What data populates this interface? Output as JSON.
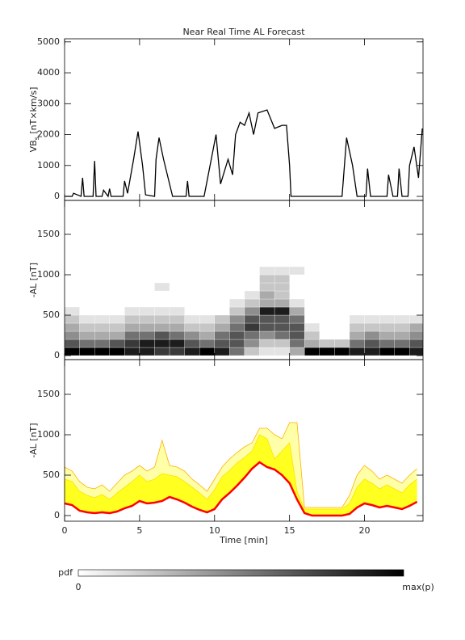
{
  "chart_data": [
    {
      "type": "line",
      "title": "Near Real Time AL Forecast",
      "ylabel": {
        "main": "VB",
        "sub": "s",
        "rest": " [nT×km/s]"
      },
      "xlim": [
        0,
        23.9
      ],
      "xticks": [
        0,
        5,
        10,
        15,
        20
      ],
      "ylim": [
        -130,
        5100
      ],
      "yticks": [
        0,
        1000,
        2000,
        3000,
        4000,
        5000
      ],
      "color": "#000000",
      "x": [
        0,
        0.5,
        0.6,
        1.1,
        1.2,
        1.3,
        1.9,
        2.0,
        2.1,
        2.5,
        2.6,
        2.9,
        3.0,
        3.1,
        3.9,
        4.0,
        4.2,
        4.6,
        4.9,
        5.2,
        5.4,
        6.0,
        6.1,
        6.3,
        6.6,
        6.9,
        7.2,
        8.1,
        8.2,
        8.3,
        9.3,
        9.9,
        10.1,
        10.4,
        10.9,
        11.2,
        11.4,
        11.7,
        12.0,
        12.3,
        12.6,
        12.9,
        13.5,
        14.0,
        14.5,
        14.8,
        15.0,
        15.1,
        18.5,
        18.8,
        19.2,
        19.5,
        20.1,
        20.2,
        20.4,
        21.5,
        21.6,
        21.9,
        22.2,
        22.3,
        22.5,
        22.9,
        23.0,
        23.3,
        23.6,
        23.85
      ],
      "values": [
        0,
        0,
        100,
        0,
        600,
        0,
        0,
        1150,
        0,
        0,
        200,
        0,
        250,
        0,
        0,
        500,
        100,
        1200,
        2100,
        1000,
        50,
        0,
        1200,
        1900,
        1200,
        600,
        0,
        0,
        500,
        0,
        0,
        1500,
        2000,
        400,
        1200,
        700,
        2000,
        2400,
        2300,
        2700,
        2000,
        2700,
        2800,
        2200,
        2300,
        2300,
        1000,
        0,
        0,
        1900,
        1000,
        0,
        0,
        900,
        0,
        0,
        700,
        0,
        0,
        900,
        0,
        0,
        1000,
        1600,
        600,
        2200
      ]
    },
    {
      "type": "heatmap",
      "ylabel": "-AL [nT]",
      "xlim": [
        0,
        23.9
      ],
      "xticks": [
        0,
        5,
        10,
        15,
        20
      ],
      "ylim": [
        -50,
        1920
      ],
      "yticks": [
        0,
        500,
        1000,
        1500
      ],
      "xbins": [
        0,
        1,
        2,
        3,
        4,
        5,
        6,
        7,
        8,
        9,
        10,
        11,
        12,
        13,
        14,
        15,
        16,
        17,
        18,
        19,
        20,
        21,
        22,
        23,
        24
      ],
      "ybins": [
        0,
        100,
        200,
        300,
        400,
        500,
        600,
        700,
        800,
        900,
        1000,
        1100
      ],
      "z": [
        [
          9,
          6,
          4,
          3,
          2,
          1,
          0,
          0,
          0,
          0,
          0
        ],
        [
          9,
          5,
          3,
          2,
          1,
          0,
          0,
          0,
          0,
          0,
          0
        ],
        [
          9,
          5,
          3,
          2,
          1,
          0,
          0,
          0,
          0,
          0,
          0
        ],
        [
          9,
          6,
          3,
          2,
          1,
          0,
          0,
          0,
          0,
          0,
          0
        ],
        [
          8,
          7,
          5,
          3,
          2,
          1,
          0,
          0,
          0,
          0,
          0
        ],
        [
          8,
          8,
          5,
          3,
          2,
          1,
          0,
          0,
          0,
          0,
          0
        ],
        [
          7,
          8,
          6,
          3,
          2,
          1,
          0,
          0,
          1,
          0,
          0
        ],
        [
          7,
          8,
          5,
          3,
          2,
          1,
          0,
          0,
          0,
          0,
          0
        ],
        [
          8,
          6,
          4,
          2,
          1,
          0,
          0,
          0,
          0,
          0,
          0
        ],
        [
          9,
          5,
          3,
          2,
          1,
          0,
          0,
          0,
          0,
          0,
          0
        ],
        [
          8,
          6,
          5,
          3,
          2,
          0,
          0,
          0,
          0,
          0,
          0
        ],
        [
          5,
          6,
          6,
          5,
          4,
          2,
          1,
          0,
          0,
          0,
          0
        ],
        [
          2,
          4,
          5,
          7,
          6,
          4,
          2,
          1,
          0,
          0,
          0
        ],
        [
          1,
          2,
          4,
          6,
          6,
          8,
          3,
          3,
          2,
          2,
          1
        ],
        [
          1,
          2,
          5,
          6,
          6,
          8,
          3,
          2,
          2,
          2,
          1
        ],
        [
          3,
          5,
          6,
          6,
          5,
          3,
          1,
          0,
          0,
          0,
          1
        ],
        [
          9,
          3,
          2,
          1,
          0,
          0,
          0,
          0,
          0,
          0,
          0
        ],
        [
          9,
          2,
          0,
          0,
          0,
          0,
          0,
          0,
          0,
          0,
          0
        ],
        [
          9,
          2,
          0,
          0,
          0,
          0,
          0,
          0,
          0,
          0,
          0
        ],
        [
          8,
          5,
          3,
          2,
          1,
          0,
          0,
          0,
          0,
          0,
          0
        ],
        [
          8,
          6,
          4,
          2,
          1,
          0,
          0,
          0,
          0,
          0,
          0
        ],
        [
          9,
          5,
          3,
          2,
          1,
          0,
          0,
          0,
          0,
          0,
          0
        ],
        [
          9,
          5,
          3,
          2,
          1,
          0,
          0,
          0,
          0,
          0,
          0
        ],
        [
          8,
          6,
          4,
          3,
          1,
          0,
          0,
          0,
          0,
          0,
          0
        ]
      ],
      "colorbar": {
        "title": "pdf",
        "low": "0",
        "high": "max(p)"
      }
    },
    {
      "type": "band",
      "ylabel": "-AL [nT]",
      "xlabel": "Time [min]",
      "xlim": [
        0,
        23.9
      ],
      "xticks": [
        0,
        5,
        10,
        15,
        20
      ],
      "ylim": [
        -70,
        1930
      ],
      "yticks": [
        0,
        500,
        1000,
        1500
      ],
      "x": [
        0,
        0.5,
        1,
        1.5,
        2,
        2.5,
        3,
        3.5,
        4,
        4.5,
        5,
        5.5,
        6,
        6.5,
        7,
        7.5,
        8,
        8.5,
        9,
        9.5,
        10,
        10.5,
        11,
        11.5,
        12,
        12.5,
        13,
        13.5,
        14,
        14.5,
        15,
        15.5,
        16,
        16.5,
        17,
        17.5,
        18,
        18.5,
        19,
        19.5,
        20,
        20.5,
        21,
        21.5,
        22,
        22.5,
        23,
        23.5
      ],
      "series": [
        {
          "color": "#ffb000",
          "fill": "#ffffa8",
          "values": [
            600,
            550,
            420,
            350,
            330,
            380,
            300,
            400,
            500,
            550,
            620,
            550,
            600,
            930,
            620,
            600,
            550,
            450,
            380,
            300,
            450,
            600,
            700,
            780,
            850,
            900,
            1080,
            1080,
            1000,
            950,
            1150,
            1150,
            100,
            100,
            100,
            100,
            100,
            100,
            250,
            500,
            620,
            550,
            450,
            500,
            450,
            400,
            500,
            580
          ]
        },
        {
          "color": "#ffe000",
          "fill": "#ffff20",
          "values": [
            450,
            420,
            300,
            250,
            220,
            260,
            200,
            280,
            350,
            420,
            500,
            420,
            450,
            520,
            500,
            480,
            420,
            350,
            280,
            200,
            320,
            480,
            560,
            650,
            720,
            800,
            1000,
            950,
            700,
            800,
            900,
            300,
            80,
            80,
            80,
            80,
            80,
            80,
            150,
            350,
            450,
            400,
            330,
            380,
            330,
            280,
            380,
            450
          ]
        },
        {
          "color": "#ff0000",
          "values": [
            150,
            130,
            60,
            40,
            30,
            40,
            30,
            50,
            90,
            120,
            180,
            150,
            160,
            180,
            230,
            200,
            160,
            110,
            70,
            40,
            80,
            200,
            280,
            370,
            470,
            580,
            660,
            600,
            570,
            500,
            400,
            200,
            30,
            0,
            0,
            0,
            0,
            0,
            20,
            100,
            150,
            130,
            100,
            120,
            100,
            80,
            120,
            170
          ]
        }
      ]
    }
  ]
}
